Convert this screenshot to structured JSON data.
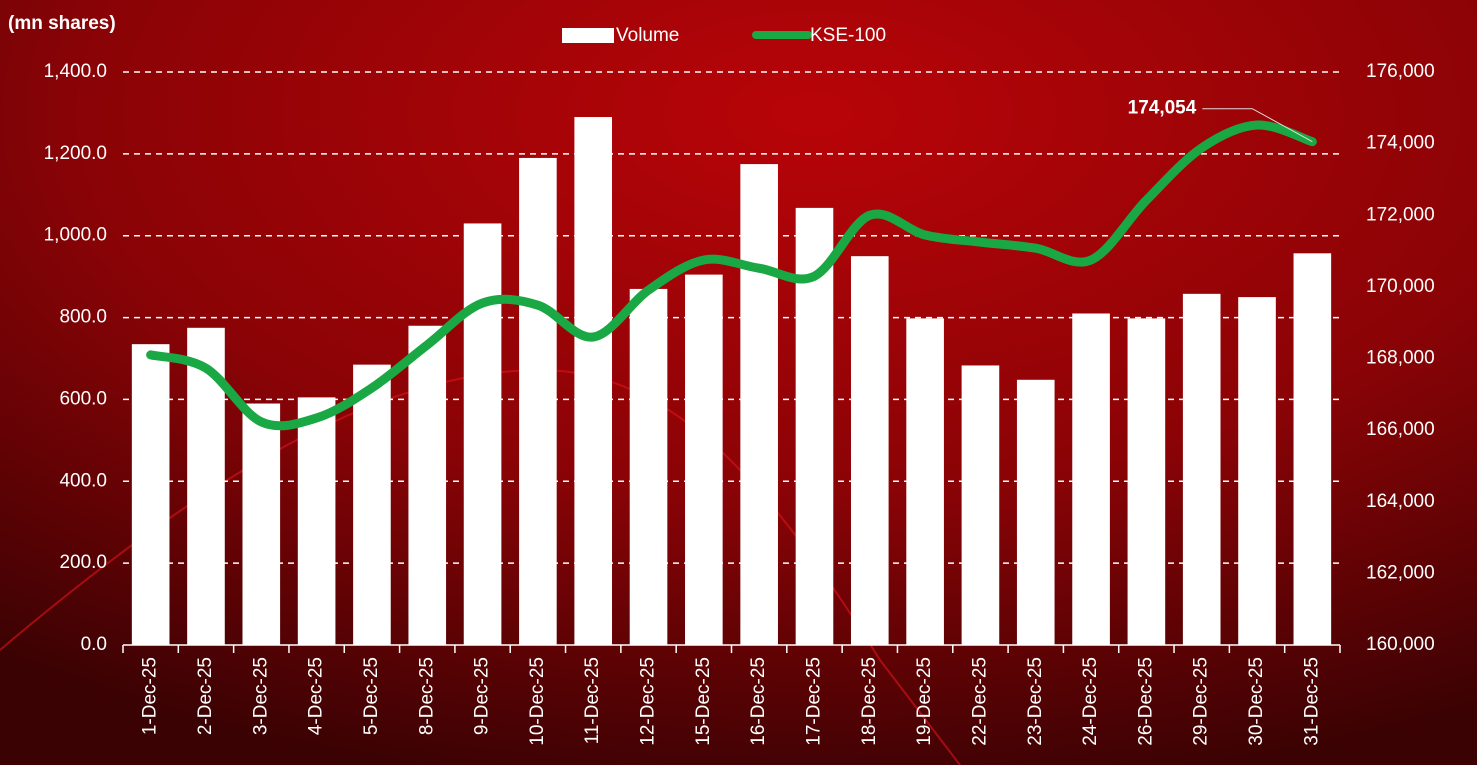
{
  "chart_data": {
    "type": "bar_line",
    "y_axis_label": "(mn shares)",
    "categories": [
      "1-Dec-25",
      "2-Dec-25",
      "3-Dec-25",
      "4-Dec-25",
      "5-Dec-25",
      "8-Dec-25",
      "9-Dec-25",
      "10-Dec-25",
      "11-Dec-25",
      "12-Dec-25",
      "15-Dec-25",
      "16-Dec-25",
      "17-Dec-25",
      "18-Dec-25",
      "19-Dec-25",
      "22-Dec-25",
      "23-Dec-25",
      "24-Dec-25",
      "26-Dec-25",
      "29-Dec-25",
      "30-Dec-25",
      "31-Dec-25"
    ],
    "series": [
      {
        "name": "Volume",
        "type": "bar",
        "color": "#ffffff",
        "values": [
          735,
          775,
          590,
          605,
          685,
          780,
          1030,
          1190,
          1290,
          870,
          905,
          1175,
          1068,
          950,
          798,
          683,
          648,
          810,
          798,
          858,
          850,
          957
        ]
      },
      {
        "name": "KSE-100",
        "type": "line",
        "axis": "y2",
        "color": "#19a843",
        "values": [
          168100,
          167730,
          166230,
          166340,
          167180,
          168380,
          169550,
          169490,
          168600,
          169910,
          170750,
          170520,
          170300,
          172000,
          171450,
          171250,
          171080,
          170750,
          172420,
          173880,
          174520,
          174054
        ],
        "value_labels": [
          null,
          null,
          null,
          null,
          null,
          null,
          null,
          null,
          null,
          null,
          null,
          null,
          null,
          null,
          null,
          null,
          null,
          null,
          null,
          null,
          null,
          "174,054"
        ]
      }
    ],
    "ylim": [
      0,
      1400
    ],
    "yticks": [
      {
        "value": 0,
        "label": "0.0"
      },
      {
        "value": 200,
        "label": "200.0"
      },
      {
        "value": 400,
        "label": "400.0"
      },
      {
        "value": 600,
        "label": "600.0"
      },
      {
        "value": 800,
        "label": "800.0"
      },
      {
        "value": 1000,
        "label": "1,000.0"
      },
      {
        "value": 1200,
        "label": "1,200.0"
      },
      {
        "value": 1400,
        "label": "1,400.0"
      }
    ],
    "y2lim": [
      160000,
      176000
    ],
    "y2ticks": [
      {
        "value": 160000,
        "label": "160,000"
      },
      {
        "value": 162000,
        "label": "162,000"
      },
      {
        "value": 164000,
        "label": "164,000"
      },
      {
        "value": 166000,
        "label": "166,000"
      },
      {
        "value": 168000,
        "label": "168,000"
      },
      {
        "value": 170000,
        "label": "170,000"
      },
      {
        "value": 172000,
        "label": "172,000"
      },
      {
        "value": 174000,
        "label": "174,000"
      },
      {
        "value": 176000,
        "label": "176,000"
      }
    ],
    "grid": true,
    "legend": "top"
  }
}
